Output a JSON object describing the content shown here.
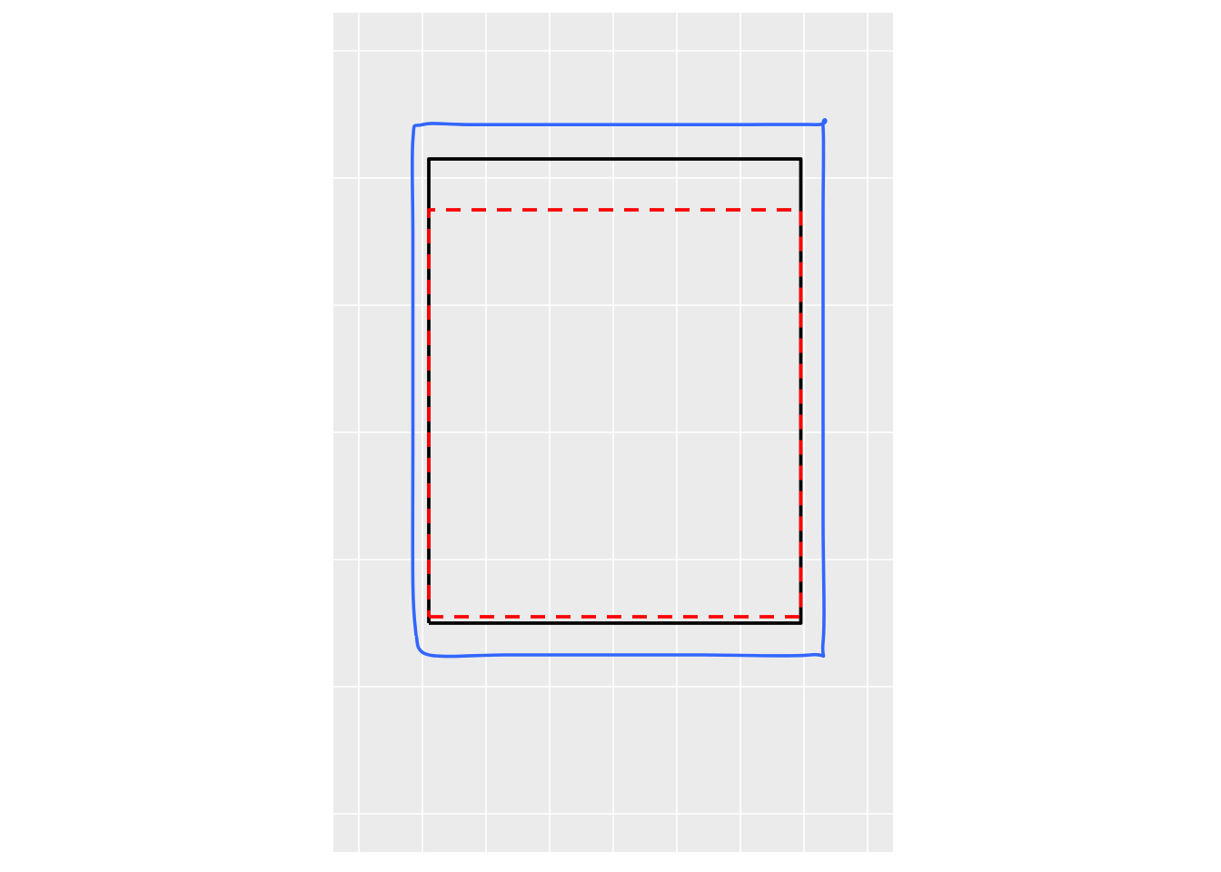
{
  "chart_data": {
    "type": "line",
    "title": "",
    "xlabel": "",
    "ylabel": "",
    "panel_background": "#EBEBEB",
    "grid": true,
    "aspect": "fixed",
    "xlim": [
      -0.2,
      8.6
    ],
    "ylim": [
      -0.3,
      6.3
    ],
    "x_major_grid": [
      0.2,
      1.2,
      2.2,
      3.2,
      4.2,
      5.2,
      6.2,
      7.2,
      8.2
    ],
    "y_major_grid": [
      0.0,
      1.0,
      2.0,
      3.0,
      4.0,
      5.0,
      6.0
    ],
    "tick_labels_shown": false,
    "series": [
      {
        "style": "smoothed-outline",
        "color": "#3366FF",
        "points": [
          [
            1.1,
            1.4
          ],
          [
            1.3,
            1.25
          ],
          [
            2.5,
            1.25
          ],
          [
            4.0,
            1.25
          ],
          [
            5.6,
            1.25
          ],
          [
            7.3,
            1.25
          ],
          [
            7.5,
            1.35
          ],
          [
            7.5,
            2.3
          ],
          [
            7.5,
            3.5
          ],
          [
            7.5,
            4.7
          ],
          [
            7.5,
            5.4
          ],
          [
            7.4,
            5.42
          ],
          [
            6.0,
            5.42
          ],
          [
            4.0,
            5.42
          ],
          [
            2.0,
            5.42
          ],
          [
            1.2,
            5.42
          ],
          [
            1.05,
            5.3
          ],
          [
            1.05,
            4.5
          ],
          [
            1.05,
            3.0
          ],
          [
            1.05,
            1.8
          ],
          [
            1.1,
            1.4
          ]
        ]
      },
      {
        "style": "solid",
        "color": "#000000",
        "points": [
          [
            1.3,
            1.5
          ],
          [
            7.15,
            1.5
          ],
          [
            7.15,
            5.15
          ],
          [
            1.3,
            5.15
          ],
          [
            1.3,
            1.5
          ]
        ]
      },
      {
        "style": "dashed",
        "color": "#FF0000",
        "points": [
          [
            1.3,
            1.55
          ],
          [
            7.15,
            1.55
          ],
          [
            7.15,
            4.75
          ],
          [
            1.3,
            4.75
          ],
          [
            1.3,
            1.55
          ]
        ]
      }
    ]
  }
}
